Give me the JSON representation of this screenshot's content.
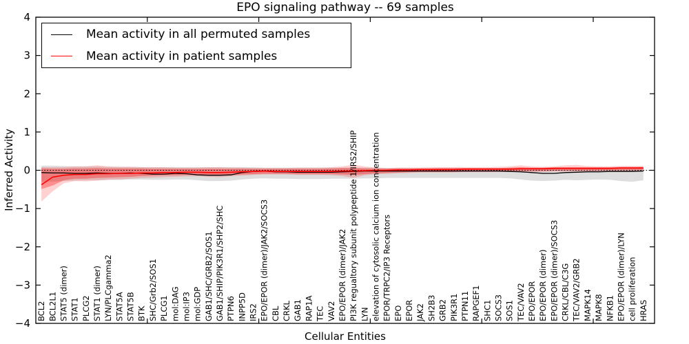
{
  "title": "EPO signaling pathway -- 69 samples",
  "xlabel": "Cellular Entities",
  "ylabel": "Inferred Activity",
  "legend": [
    {
      "label": "Mean activity in all permuted samples",
      "color": "#000000"
    },
    {
      "label": "Mean activity in patient samples",
      "color": "#ff0000"
    }
  ],
  "colors": {
    "permuted_line": "#000000",
    "patient_line": "#ff0000",
    "permuted_band": "#000000",
    "patient_band": "#ff0000",
    "axis": "#000000"
  },
  "chart_data": {
    "type": "line",
    "title": "EPO signaling pathway -- 69 samples",
    "xlabel": "Cellular Entities",
    "ylabel": "Inferred Activity",
    "ylim": [
      -4,
      4
    ],
    "yticks": [
      -4,
      -3,
      -2,
      -1,
      0,
      1,
      2,
      3,
      4
    ],
    "xlim": [
      -0.5,
      55
    ],
    "xticks": [
      9.5,
      19.5,
      29.5,
      39.5,
      49.5
    ],
    "grid": false,
    "legend_position": "upper left",
    "zero_line": {
      "y": 0,
      "style": "dotted",
      "color": "#000000"
    },
    "categories": [
      "BCL2",
      "BCL2L1",
      "STAT5 (dimer)",
      "STAT1",
      "PLCG2",
      "STAT1 (dimer)",
      "LYN/PLCgamma2",
      "STAT5A",
      "STAT5B",
      "BTK",
      "SHC/Grb2/SOS1",
      "PLCG1",
      "mol:DAG",
      "mol:IP3",
      "mol:GDP",
      "GAB1/SHC/GRB2/SOS1",
      "GAB1/SHIP/PIK3R1/SHP2/SHC",
      "PTPN6",
      "INPP5D",
      "IRS2",
      "EPO/EPOR (dimer)/JAK2/SOCS3",
      "CBL",
      "CRKL",
      "GAB1",
      "RAP1A",
      "TEC",
      "VAV2",
      "EPO/EPOR (dimer)/JAK2",
      "PI3K regualtory subunit polypeptide 1/IRS2/SHIP",
      "LYN",
      "elevation of cytosolic calcium ion concentration",
      "EPOR/TRPC2/IP3 Receptors",
      "EPO",
      "EPOR",
      "JAK2",
      "SH2B3",
      "GRB2",
      "PIK3R1",
      "PTPN11",
      "RAPGEF1",
      "SHC1",
      "SOCS3",
      "SOS1",
      "TEC/VAV2",
      "EPO/EPOR",
      "EPO/EPOR (dimer)",
      "EPO/EPOR (dimer)/SOCS3",
      "CRKL/CBL/C3G",
      "TEC/VAV2/GRB2",
      "MAPK14",
      "MAPK8",
      "NFKB1",
      "EPO/EPOR (dimer)/LYN",
      "cell proliferation",
      "HRAS"
    ],
    "series": [
      {
        "name": "Mean activity in all permuted samples",
        "color": "#000000",
        "values": [
          -0.06,
          -0.07,
          -0.07,
          -0.08,
          -0.08,
          -0.07,
          -0.08,
          -0.08,
          -0.07,
          -0.08,
          -0.1,
          -0.1,
          -0.08,
          -0.09,
          -0.12,
          -0.13,
          -0.13,
          -0.12,
          -0.06,
          -0.03,
          -0.02,
          -0.04,
          -0.04,
          -0.05,
          -0.05,
          -0.05,
          -0.05,
          -0.04,
          -0.03,
          -0.02,
          -0.02,
          -0.02,
          -0.02,
          -0.02,
          -0.02,
          -0.02,
          -0.02,
          -0.02,
          -0.02,
          -0.02,
          -0.02,
          -0.02,
          -0.03,
          -0.04,
          -0.06,
          -0.08,
          -0.08,
          -0.06,
          -0.05,
          -0.04,
          -0.04,
          -0.03,
          -0.03,
          -0.03,
          -0.02
        ],
        "band_upper": [
          0.12,
          0.12,
          0.11,
          0.1,
          0.1,
          0.1,
          0.09,
          0.09,
          0.09,
          0.08,
          0.08,
          0.08,
          0.08,
          0.08,
          0.08,
          0.08,
          0.08,
          0.08,
          0.08,
          0.08,
          0.07,
          0.07,
          0.07,
          0.07,
          0.07,
          0.07,
          0.07,
          0.07,
          0.07,
          0.07,
          0.07,
          0.06,
          0.06,
          0.06,
          0.06,
          0.06,
          0.06,
          0.06,
          0.06,
          0.06,
          0.06,
          0.06,
          0.06,
          0.06,
          0.06,
          0.06,
          0.06,
          0.06,
          0.06,
          0.06,
          0.06,
          0.06,
          0.06,
          0.07,
          0.08
        ],
        "band_lower": [
          -0.3,
          -0.3,
          -0.28,
          -0.27,
          -0.26,
          -0.26,
          -0.25,
          -0.25,
          -0.24,
          -0.24,
          -0.25,
          -0.25,
          -0.24,
          -0.24,
          -0.26,
          -0.28,
          -0.28,
          -0.27,
          -0.24,
          -0.22,
          -0.21,
          -0.22,
          -0.22,
          -0.23,
          -0.23,
          -0.23,
          -0.22,
          -0.22,
          -0.22,
          -0.21,
          -0.21,
          -0.2,
          -0.2,
          -0.2,
          -0.2,
          -0.2,
          -0.2,
          -0.2,
          -0.2,
          -0.2,
          -0.2,
          -0.2,
          -0.21,
          -0.24,
          -0.27,
          -0.28,
          -0.27,
          -0.25,
          -0.26,
          -0.25,
          -0.24,
          -0.25,
          -0.28,
          -0.3,
          -0.26
        ],
        "band_opacity": 0.13
      },
      {
        "name": "Mean activity in patient samples",
        "color": "#ff0000",
        "values": [
          -0.38,
          -0.18,
          -0.13,
          -0.11,
          -0.11,
          -0.09,
          -0.09,
          -0.08,
          -0.08,
          -0.07,
          -0.07,
          -0.06,
          -0.06,
          -0.05,
          -0.05,
          -0.06,
          -0.06,
          -0.05,
          -0.04,
          -0.03,
          -0.02,
          -0.03,
          -0.03,
          -0.03,
          -0.03,
          -0.03,
          -0.03,
          -0.02,
          -0.02,
          -0.01,
          0.0,
          0.0,
          0.01,
          0.01,
          0.02,
          0.02,
          0.02,
          0.02,
          0.03,
          0.03,
          0.03,
          0.03,
          0.03,
          0.04,
          0.04,
          0.04,
          0.05,
          0.05,
          0.05,
          0.05,
          0.05,
          0.05,
          0.06,
          0.06,
          0.06
        ],
        "band_upper": [
          0.05,
          0.04,
          0.04,
          0.05,
          0.05,
          0.06,
          0.05,
          0.05,
          0.05,
          0.05,
          0.04,
          0.04,
          0.04,
          0.04,
          0.04,
          0.04,
          0.04,
          0.04,
          0.04,
          0.04,
          0.04,
          0.04,
          0.04,
          0.04,
          0.04,
          0.04,
          0.05,
          0.06,
          0.06,
          0.05,
          0.04,
          0.04,
          0.05,
          0.05,
          0.05,
          0.05,
          0.06,
          0.06,
          0.06,
          0.06,
          0.06,
          0.06,
          0.07,
          0.08,
          0.07,
          0.07,
          0.08,
          0.08,
          0.08,
          0.08,
          0.08,
          0.08,
          0.09,
          0.09,
          0.09
        ],
        "band_lower": [
          -0.49,
          -0.4,
          -0.26,
          -0.22,
          -0.22,
          -0.2,
          -0.19,
          -0.18,
          -0.17,
          -0.15,
          -0.14,
          -0.13,
          -0.13,
          -0.12,
          -0.12,
          -0.13,
          -0.13,
          -0.12,
          -0.11,
          -0.1,
          -0.09,
          -0.09,
          -0.09,
          -0.1,
          -0.1,
          -0.1,
          -0.1,
          -0.11,
          -0.12,
          -0.1,
          -0.08,
          -0.07,
          -0.06,
          -0.05,
          -0.04,
          -0.04,
          -0.04,
          -0.04,
          -0.03,
          -0.03,
          -0.03,
          -0.03,
          -0.02,
          -0.02,
          -0.02,
          -0.02,
          -0.01,
          -0.01,
          -0.01,
          -0.01,
          -0.01,
          0.0,
          0.0,
          0.0,
          0.01
        ],
        "band_opacity": 0.32,
        "outer_upper": [
          0.08,
          0.08,
          0.08,
          0.1,
          0.1,
          0.13,
          0.1,
          0.09,
          0.09,
          0.08,
          0.08,
          0.08,
          0.07,
          0.07,
          0.07,
          0.08,
          0.08,
          0.07,
          0.07,
          0.06,
          0.06,
          0.06,
          0.06,
          0.07,
          0.07,
          0.07,
          0.08,
          0.1,
          0.15,
          0.1,
          0.07,
          0.06,
          0.07,
          0.07,
          0.07,
          0.08,
          0.08,
          0.08,
          0.08,
          0.08,
          0.08,
          0.09,
          0.1,
          0.13,
          0.1,
          0.09,
          0.1,
          0.13,
          0.14,
          0.11,
          0.1,
          0.1,
          0.11,
          0.11,
          0.11
        ],
        "outer_lower": [
          -0.82,
          -0.55,
          -0.34,
          -0.28,
          -0.29,
          -0.27,
          -0.25,
          -0.24,
          -0.22,
          -0.2,
          -0.19,
          -0.18,
          -0.17,
          -0.16,
          -0.16,
          -0.17,
          -0.18,
          -0.16,
          -0.14,
          -0.12,
          -0.11,
          -0.11,
          -0.11,
          -0.12,
          -0.12,
          -0.12,
          -0.13,
          -0.15,
          -0.2,
          -0.13,
          -0.1,
          -0.09,
          -0.08,
          -0.07,
          -0.06,
          -0.06,
          -0.06,
          -0.06,
          -0.05,
          -0.05,
          -0.05,
          -0.05,
          -0.04,
          -0.04,
          -0.04,
          -0.04,
          -0.03,
          -0.03,
          -0.03,
          -0.03,
          -0.03,
          -0.02,
          -0.02,
          -0.02,
          -0.01
        ],
        "outer_opacity": 0.18
      }
    ]
  }
}
